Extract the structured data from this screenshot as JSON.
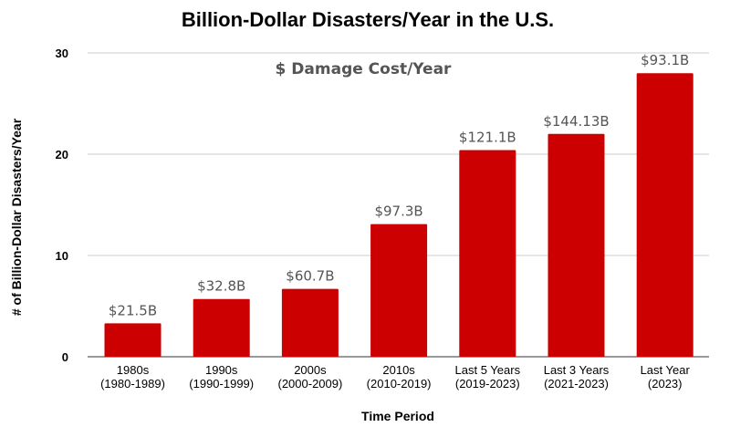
{
  "chart_data": {
    "type": "bar",
    "title": "Billion-Dollar Disasters/Year in the U.S.",
    "xlabel": "Time Period",
    "ylabel": "# of Billion-Dollar Disasters/Year",
    "annotation": "$ Damage Cost/Year",
    "ylim": [
      0,
      30
    ],
    "yticks": [
      0,
      10,
      20,
      30
    ],
    "grid": true,
    "categories": [
      [
        "1980s",
        "(1980-1989)"
      ],
      [
        "1990s",
        "(1990-1999)"
      ],
      [
        "2000s",
        "(2000-2009)"
      ],
      [
        "2010s",
        "(2010-2019)"
      ],
      [
        "Last 5 Years",
        "(2019-2023)"
      ],
      [
        "Last 3 Years",
        "(2021-2023)"
      ],
      [
        "Last Year",
        "(2023)"
      ]
    ],
    "values": [
      3.3,
      5.7,
      6.7,
      13.1,
      20.4,
      22.0,
      28.0
    ],
    "data_labels": [
      "$21.5B",
      "$32.8B",
      "$60.7B",
      "$97.3B",
      "$121.1B",
      "$144.13B",
      "$93.1B"
    ],
    "bar_color": "#cc0000"
  }
}
